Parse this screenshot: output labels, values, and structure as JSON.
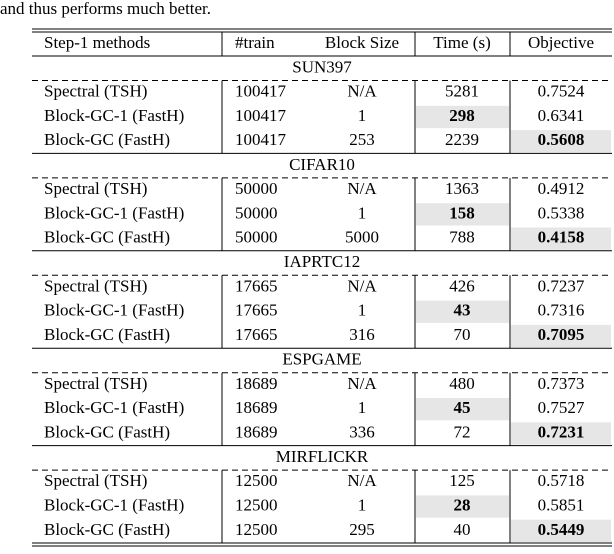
{
  "intro": "and thus performs much better.",
  "table": {
    "header": [
      "Step-1 methods",
      "#train",
      "Block Size",
      "Time (s)",
      "Objective"
    ],
    "groups": [
      {
        "title": "SUN397",
        "best": {
          "time": 1,
          "objective": 2
        },
        "rows": [
          [
            "Spectral (TSH)",
            "100417",
            "N/A",
            "5281",
            "0.7524"
          ],
          [
            "Block-GC-1 (FastH)",
            "100417",
            "1",
            "298",
            "0.6341"
          ],
          [
            "Block-GC (FastH)",
            "100417",
            "253",
            "2239",
            "0.5608"
          ]
        ]
      },
      {
        "title": "CIFAR10",
        "best": {
          "time": 1,
          "objective": 2
        },
        "rows": [
          [
            "Spectral (TSH)",
            "50000",
            "N/A",
            "1363",
            "0.4912"
          ],
          [
            "Block-GC-1 (FastH)",
            "50000",
            "1",
            "158",
            "0.5338"
          ],
          [
            "Block-GC (FastH)",
            "50000",
            "5000",
            "788",
            "0.4158"
          ]
        ]
      },
      {
        "title": "IAPRTC12",
        "best": {
          "time": 1,
          "objective": 2
        },
        "rows": [
          [
            "Spectral (TSH)",
            "17665",
            "N/A",
            "426",
            "0.7237"
          ],
          [
            "Block-GC-1 (FastH)",
            "17665",
            "1",
            "43",
            "0.7316"
          ],
          [
            "Block-GC (FastH)",
            "17665",
            "316",
            "70",
            "0.7095"
          ]
        ]
      },
      {
        "title": "ESPGAME",
        "best": {
          "time": 1,
          "objective": 2
        },
        "rows": [
          [
            "Spectral (TSH)",
            "18689",
            "N/A",
            "480",
            "0.7373"
          ],
          [
            "Block-GC-1 (FastH)",
            "18689",
            "1",
            "45",
            "0.7527"
          ],
          [
            "Block-GC (FastH)",
            "18689",
            "336",
            "72",
            "0.7231"
          ]
        ]
      },
      {
        "title": "MIRFLICKR",
        "best": {
          "time": 1,
          "objective": 2
        },
        "rows": [
          [
            "Spectral (TSH)",
            "12500",
            "N/A",
            "125",
            "0.5718"
          ],
          [
            "Block-GC-1 (FastH)",
            "12500",
            "1",
            "28",
            "0.5851"
          ],
          [
            "Block-GC (FastH)",
            "12500",
            "295",
            "40",
            "0.5449"
          ]
        ]
      }
    ]
  }
}
